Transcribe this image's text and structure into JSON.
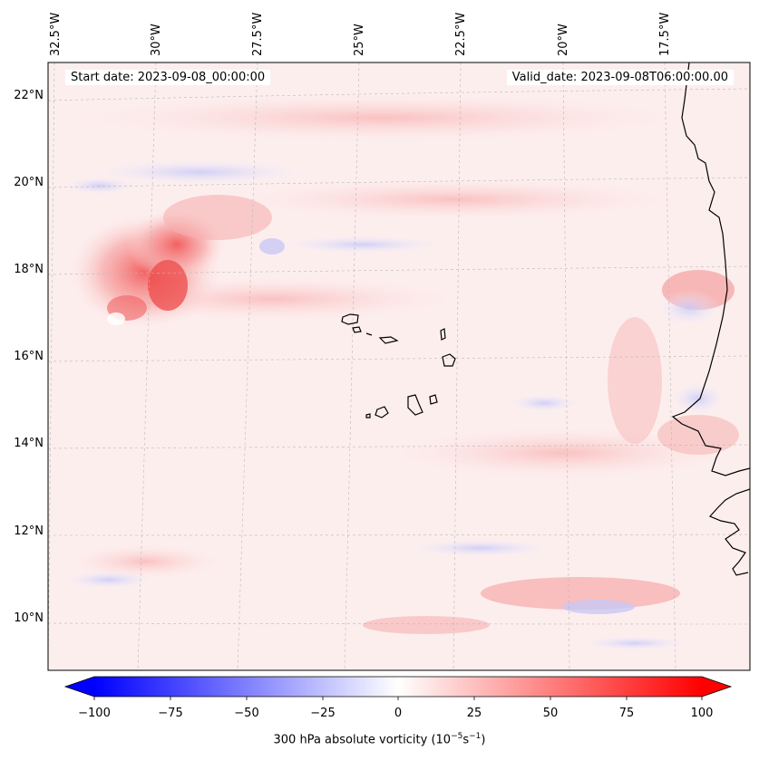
{
  "map": {
    "start_date": "Start date: 2023-09-08_00:00:00",
    "valid_date": "Valid_date: 2023-09-08T06:00:00.00",
    "lon_labels": [
      "32.5°W",
      "30°W",
      "27.5°W",
      "25°W",
      "22.5°W",
      "20°W",
      "17.5°W"
    ],
    "lat_labels": [
      "22°N",
      "20°N",
      "18°N",
      "16°N",
      "14°N",
      "12°N",
      "10°N"
    ]
  },
  "colorbar": {
    "ticks": [
      "−100",
      "−75",
      "−50",
      "−25",
      "0",
      "25",
      "50",
      "75",
      "100"
    ],
    "label_prefix": "300 hPa absolute vorticity (10",
    "label_exp1": "−5",
    "label_mid": "s",
    "label_exp2": "−1",
    "label_suffix": ")",
    "min_color": "#0000ff",
    "mid_color": "#ffffff",
    "max_color": "#ff0000"
  }
}
